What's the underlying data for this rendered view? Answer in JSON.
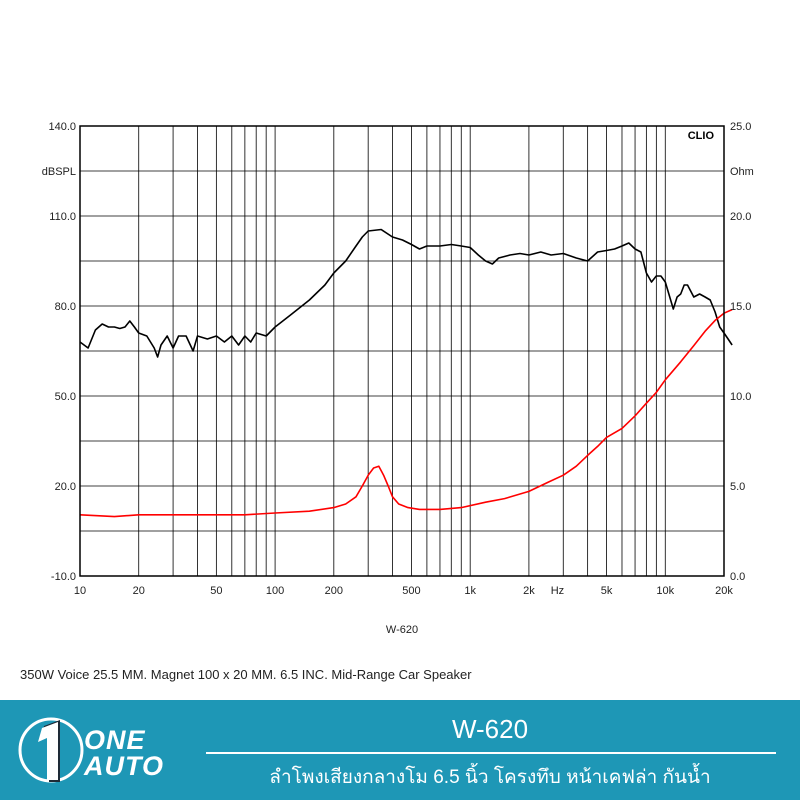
{
  "chart_data": {
    "type": "line",
    "brand_label": "CLIO",
    "title": "W-620",
    "x_scale": "log",
    "xlim": [
      10,
      20000
    ],
    "x_ticks": [
      10,
      20,
      50,
      100,
      200,
      500,
      1000,
      2000,
      5000,
      10000,
      20000
    ],
    "x_tick_labels": [
      "10",
      "20",
      "50",
      "100",
      "200",
      "500",
      "1k",
      "2k",
      "5k",
      "10k",
      "20k"
    ],
    "x_unit": "Hz",
    "y_left": {
      "unit": "dBSPL",
      "ylim": [
        -10,
        140
      ],
      "ticks": [
        -10,
        20,
        50,
        80,
        110,
        140
      ],
      "tick_labels": [
        "-10.0",
        "20.0",
        "50.0",
        "80.0",
        "110.0",
        "140.0"
      ]
    },
    "y_right": {
      "unit": "Ohm",
      "ylim": [
        0,
        25
      ],
      "ticks": [
        0,
        5,
        10,
        15,
        20,
        25
      ],
      "tick_labels": [
        "0.0",
        "5.0",
        "10.0",
        "15.0",
        "20.0",
        "25.0"
      ]
    },
    "grid": true,
    "series": [
      {
        "axis": "left",
        "color": "#000000",
        "points": [
          [
            10,
            68
          ],
          [
            11,
            66
          ],
          [
            12,
            72
          ],
          [
            13,
            74
          ],
          [
            14,
            73
          ],
          [
            15,
            73
          ],
          [
            16,
            72.5
          ],
          [
            17,
            73
          ],
          [
            18,
            75
          ],
          [
            19,
            73
          ],
          [
            20,
            71
          ],
          [
            22,
            70
          ],
          [
            24,
            66
          ],
          [
            25,
            63
          ],
          [
            26,
            67
          ],
          [
            28,
            70
          ],
          [
            30,
            66
          ],
          [
            32,
            70
          ],
          [
            35,
            70
          ],
          [
            38,
            65
          ],
          [
            40,
            70
          ],
          [
            45,
            69
          ],
          [
            50,
            70
          ],
          [
            55,
            68
          ],
          [
            60,
            70
          ],
          [
            65,
            67
          ],
          [
            70,
            70
          ],
          [
            75,
            68
          ],
          [
            80,
            71
          ],
          [
            90,
            70
          ],
          [
            100,
            73
          ],
          [
            120,
            77
          ],
          [
            150,
            82
          ],
          [
            180,
            87
          ],
          [
            200,
            91
          ],
          [
            230,
            95
          ],
          [
            260,
            100
          ],
          [
            280,
            103
          ],
          [
            300,
            105
          ],
          [
            350,
            105.5
          ],
          [
            400,
            103
          ],
          [
            450,
            102
          ],
          [
            500,
            100.5
          ],
          [
            550,
            99
          ],
          [
            600,
            100
          ],
          [
            700,
            100
          ],
          [
            800,
            100.5
          ],
          [
            900,
            100
          ],
          [
            1000,
            99.5
          ],
          [
            1100,
            97
          ],
          [
            1200,
            95
          ],
          [
            1300,
            94
          ],
          [
            1400,
            96
          ],
          [
            1600,
            97
          ],
          [
            1800,
            97.5
          ],
          [
            2000,
            97
          ],
          [
            2300,
            98
          ],
          [
            2600,
            97
          ],
          [
            3000,
            97.5
          ],
          [
            3500,
            96
          ],
          [
            4000,
            95
          ],
          [
            4500,
            98
          ],
          [
            5000,
            98.5
          ],
          [
            5500,
            99
          ],
          [
            6000,
            100
          ],
          [
            6500,
            101
          ],
          [
            7000,
            99
          ],
          [
            7500,
            98
          ],
          [
            8000,
            91
          ],
          [
            8500,
            88
          ],
          [
            9000,
            90
          ],
          [
            9500,
            90
          ],
          [
            10000,
            88
          ],
          [
            11000,
            79
          ],
          [
            11500,
            83
          ],
          [
            12000,
            84
          ],
          [
            12500,
            87
          ],
          [
            13000,
            87
          ],
          [
            14000,
            83
          ],
          [
            15000,
            84
          ],
          [
            16000,
            83
          ],
          [
            17000,
            82
          ],
          [
            18000,
            78
          ],
          [
            19000,
            73
          ],
          [
            20000,
            71
          ],
          [
            21000,
            69
          ],
          [
            22000,
            67
          ]
        ]
      },
      {
        "axis": "right",
        "color": "#ff0000",
        "points": [
          [
            10,
            3.4
          ],
          [
            15,
            3.3
          ],
          [
            20,
            3.4
          ],
          [
            30,
            3.4
          ],
          [
            50,
            3.4
          ],
          [
            70,
            3.4
          ],
          [
            100,
            3.5
          ],
          [
            150,
            3.6
          ],
          [
            200,
            3.8
          ],
          [
            230,
            4.0
          ],
          [
            260,
            4.4
          ],
          [
            280,
            5.0
          ],
          [
            300,
            5.6
          ],
          [
            320,
            6.0
          ],
          [
            340,
            6.1
          ],
          [
            360,
            5.6
          ],
          [
            380,
            5.0
          ],
          [
            400,
            4.4
          ],
          [
            430,
            4.0
          ],
          [
            480,
            3.8
          ],
          [
            550,
            3.7
          ],
          [
            700,
            3.7
          ],
          [
            900,
            3.8
          ],
          [
            1200,
            4.1
          ],
          [
            1500,
            4.3
          ],
          [
            2000,
            4.7
          ],
          [
            2500,
            5.2
          ],
          [
            3000,
            5.6
          ],
          [
            3500,
            6.1
          ],
          [
            4000,
            6.7
          ],
          [
            4500,
            7.2
          ],
          [
            5000,
            7.7
          ],
          [
            6000,
            8.2
          ],
          [
            7000,
            8.9
          ],
          [
            8000,
            9.6
          ],
          [
            9000,
            10.2
          ],
          [
            10000,
            10.9
          ],
          [
            12000,
            11.9
          ],
          [
            14000,
            12.8
          ],
          [
            16000,
            13.6
          ],
          [
            18000,
            14.2
          ],
          [
            20000,
            14.6
          ],
          [
            22000,
            14.8
          ]
        ]
      }
    ]
  },
  "caption": "350W Voice 25.5 MM. Magnet 100 x 20 MM. 6.5 INC. Mid-Range Car Speaker",
  "banner": {
    "logo_line1": "ONE",
    "logo_line2": "AUTO",
    "model": "W-620",
    "description_th": "ลำโพงเสียงกลางโม 6.5 นิ้ว โครงทึบ หน้าเคฟล่า กันน้ำ",
    "background_color": "#1e97b6"
  }
}
